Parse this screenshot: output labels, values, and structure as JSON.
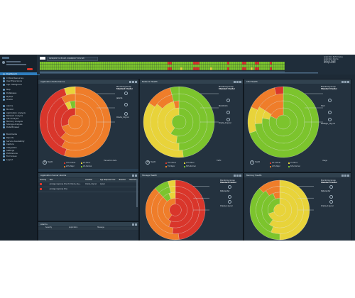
{
  "sidebar": {
    "items": [
      {
        "label": "Dashboard",
        "active": true
      },
      {
        "label": "Critical Resources"
      },
      {
        "label": "User Experience"
      },
      {
        "label": "App Intelligence"
      },
      {
        "label": "Map"
      },
      {
        "label": "Databases"
      },
      {
        "label": "MySQL"
      },
      {
        "label": "Oracle"
      },
      {
        "label": "Alarms"
      },
      {
        "label": "Monitor"
      },
      {
        "label": "Application Analysis"
      },
      {
        "label": "Network Analysis"
      },
      {
        "label": "CPU Analysis"
      },
      {
        "label": "Memory Analysis"
      },
      {
        "label": "Storage Analysis"
      },
      {
        "label": "Data Browser"
      },
      {
        "label": "Bookmarks"
      },
      {
        "label": "Reports"
      },
      {
        "label": "Service Availability"
      },
      {
        "label": "Capture"
      },
      {
        "label": "Integration"
      },
      {
        "label": "Settings"
      },
      {
        "label": "Preferences"
      },
      {
        "label": "Full Screen"
      },
      {
        "label": "Logout"
      }
    ]
  },
  "timeline": {
    "range_text": "04/14/2017 14:52 AM - 04/14/2017 15:52 AM",
    "right_labels": [
      "Application Performance",
      "Application Alarms",
      "Network Health",
      "Storage Health"
    ]
  },
  "panels": {
    "app_perf": {
      "title": "Application Performance",
      "labels": [
        {
          "name": "Monitoring Group",
          "value": "Standard Cluster"
        },
        {
          "name": "Jakarta",
          "value": ""
        },
        {
          "name": "Oracle_11g rel",
          "value": ""
        }
      ],
      "stats": [
        {
          "value": "21",
          "label": "Health"
        },
        {
          "value": "",
          "label": "Critical"
        },
        {
          "value": "",
          "label": "Minor"
        },
        {
          "value": "",
          "label": "Transaction Rate"
        }
      ],
      "legend": [
        "Critical",
        "Major",
        "Minor",
        "Normal"
      ],
      "legend_pct": [
        "73%",
        "25%",
        "2%",
        "0%"
      ]
    },
    "network": {
      "title": "Network Health",
      "labels": [
        {
          "name": "Monitoring Group",
          "value": "Standard Cluster"
        },
        {
          "name": "Stockholm",
          "value": ""
        },
        {
          "name": "Oracle_11g rel",
          "value": ""
        }
      ],
      "stats": [
        {
          "value": "18",
          "label": "Health"
        },
        {
          "value": "",
          "label": "Traffic"
        }
      ],
      "legend": [
        "Critical",
        "Major",
        "Minor",
        "Normal"
      ],
      "legend_pct": [
        "0%",
        "5%",
        "37%",
        "58%"
      ]
    },
    "cpu": {
      "title": "CPU Health",
      "labels": [
        {
          "name": "Monitoring Group",
          "value": "Standard Cluster"
        },
        {
          "name": "Host",
          "value": ""
        },
        {
          "name": "Websgin_11g rel",
          "value": ""
        }
      ],
      "stats": [
        {
          "value": "3",
          "label": "Health"
        },
        {
          "value": "",
          "label": "Usage"
        }
      ],
      "legend": [
        "Critical",
        "Major",
        "Minor",
        "Normal"
      ],
      "legend_pct": [
        "0%",
        "13%",
        "3%",
        "84%"
      ]
    },
    "alarms_table": {
      "title": "Application Server Alarms",
      "headers": [
        "Severity",
        "Title",
        "Classifier",
        "App Response Time",
        "Baseline",
        "Threshold"
      ],
      "rows": [
        [
          "",
          "Average response time for Oracle_11g...",
          "Oracle_11g rel",
          "mysql",
          "",
          ""
        ],
        [
          "",
          "Average response time",
          "",
          "",
          "",
          ""
        ]
      ]
    },
    "alarms": {
      "title": "Alarms",
      "headers": [
        "",
        "Severity",
        "Application",
        "Message"
      ]
    },
    "storage": {
      "title": "Storage Health",
      "labels": [
        {
          "name": "Monitoring Group",
          "value": "Standard Cluster"
        },
        {
          "name": "Datacenter",
          "value": ""
        },
        {
          "name": "Oracle_11g rel",
          "value": ""
        }
      ],
      "stats": [
        {
          "value": "",
          "label": "Health"
        }
      ]
    },
    "memory": {
      "title": "Memory Health",
      "labels": [
        {
          "name": "Monitoring Group",
          "value": "Standard Cluster"
        },
        {
          "name": "Datacenter",
          "value": ""
        },
        {
          "name": "Oracle_11g rel",
          "value": ""
        }
      ],
      "stats": [
        {
          "value": "",
          "label": "Health"
        }
      ]
    }
  },
  "colors": {
    "critical": "#d9362b",
    "major": "#ef7d2a",
    "minor": "#e8d33a",
    "normal": "#7cc42d",
    "accent": "#2f7fc0"
  }
}
